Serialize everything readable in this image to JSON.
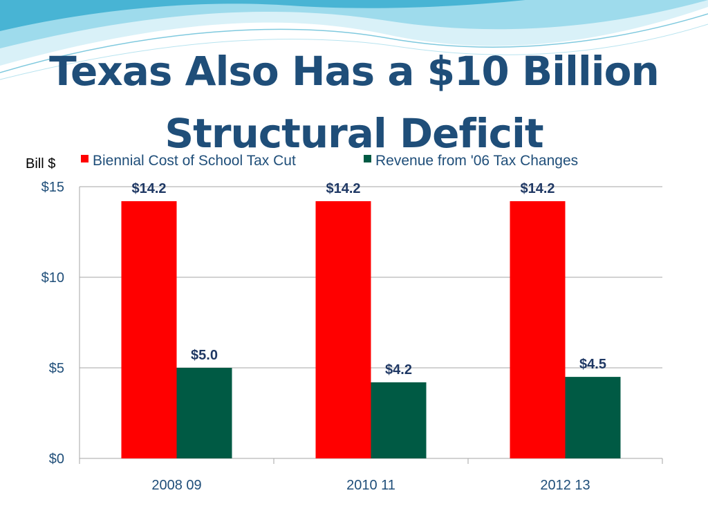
{
  "slide": {
    "title_line1": "Texas Also Has a $10 Billion",
    "title_line2": "Structural Deficit"
  },
  "colors": {
    "title": "#1f4e79",
    "axis_text": "#1f4e79",
    "data_label": "#1f3864",
    "series_red": "#ff0000",
    "series_green": "#005a44",
    "gridline": "#a6a6a6",
    "wave_light": "#bfe7f2",
    "wave_mid": "#7fd0e6",
    "wave_dark": "#3aa6c8"
  },
  "chart_data": {
    "type": "bar",
    "unit_label": "Bill $",
    "categories": [
      "2008 09",
      "2010 11",
      "2012 13"
    ],
    "series": [
      {
        "name": "Biennial Cost of School Tax Cut",
        "color": "#ff0000",
        "values": [
          14.2,
          14.2,
          14.2
        ],
        "labels": [
          "$14.2",
          "$14.2",
          "$14.2"
        ]
      },
      {
        "name": "Revenue from '06 Tax Changes",
        "color": "#005a44",
        "values": [
          5.0,
          4.2,
          4.5
        ],
        "labels": [
          "$5.0",
          "$4.2",
          "$4.5"
        ]
      }
    ],
    "yticks": [
      0,
      5,
      10,
      15
    ],
    "ytick_labels": [
      "$0",
      "$5",
      "$10",
      "$15"
    ],
    "ylim": [
      0,
      15
    ],
    "grid": true,
    "legend_position": "top"
  }
}
